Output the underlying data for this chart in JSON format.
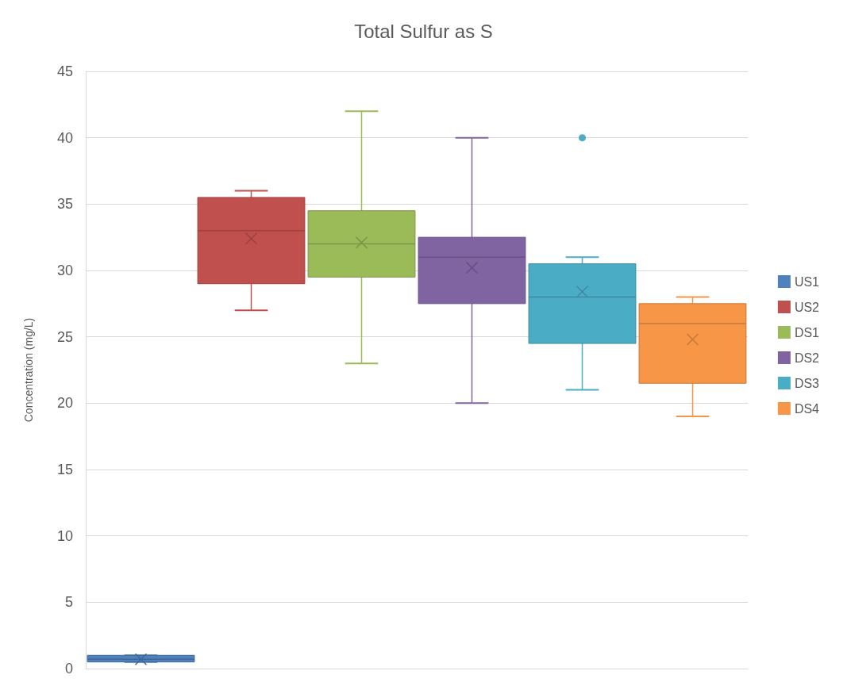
{
  "chart_data": {
    "type": "box",
    "title": "Total Sulfur as S",
    "ylabel": "Concentration (mg/L)",
    "categories": [
      null,
      null,
      null,
      null,
      null,
      null
    ],
    "ylim": [
      0,
      45
    ],
    "yticks": [
      0,
      5,
      10,
      15,
      20,
      25,
      30,
      35,
      40,
      45
    ],
    "grid": "y",
    "legend": "right",
    "tick_labels": "y",
    "series": [
      {
        "name": "US1",
        "color": "#4f81bd",
        "boxes": [
          {
            "low": 0.5,
            "q1": 0.5,
            "median": 0.7,
            "q3": 1.0,
            "high": 1.0,
            "mean": 0.7
          },
          null,
          null,
          null,
          null,
          null
        ]
      },
      {
        "name": "US2",
        "color": "#c0504d",
        "boxes": [
          null,
          {
            "low": 27,
            "q1": 29,
            "median": 33,
            "q3": 35.5,
            "high": 36,
            "mean": 32.4
          },
          null,
          null,
          null,
          null
        ]
      },
      {
        "name": "DS1",
        "color": "#9bbb59",
        "boxes": [
          null,
          null,
          {
            "low": 23,
            "q1": 29.5,
            "median": 32,
            "q3": 34.5,
            "high": 42,
            "mean": 32.1
          },
          null,
          null,
          null
        ]
      },
      {
        "name": "DS2",
        "color": "#8064a2",
        "boxes": [
          null,
          null,
          null,
          {
            "low": 20,
            "q1": 27.5,
            "median": 31,
            "q3": 32.5,
            "high": 40,
            "mean": 30.2
          },
          null,
          null
        ]
      },
      {
        "name": "DS3",
        "color": "#4bacc6",
        "boxes": [
          null,
          null,
          null,
          null,
          {
            "low": 21,
            "q1": 24.5,
            "median": 28,
            "q3": 30.5,
            "high": 31,
            "mean": 28.4,
            "outliers": [
              40
            ]
          },
          null
        ]
      },
      {
        "name": "DS4",
        "color": "#f79646",
        "boxes": [
          null,
          null,
          null,
          null,
          null,
          {
            "low": 19,
            "q1": 21.5,
            "median": 26,
            "q3": 27.5,
            "high": 28,
            "mean": 24.8
          }
        ]
      }
    ]
  }
}
